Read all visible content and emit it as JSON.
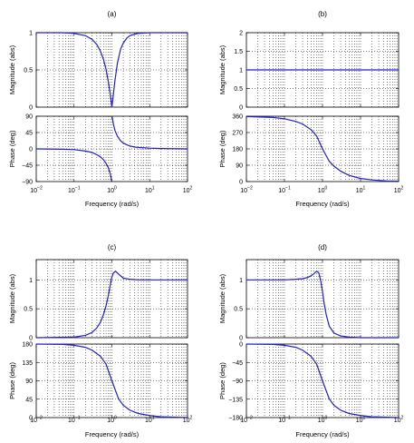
{
  "chart_data": [
    {
      "id": "a",
      "panel_label": "(a)",
      "type": "line",
      "xlabel": "Frequency  (rad/s)",
      "xscale": "log",
      "xlim": [
        0.01,
        100
      ],
      "x_ticks": [
        {
          "base": "10",
          "exp": "−2"
        },
        {
          "base": "10",
          "exp": "−1"
        },
        {
          "base": "10",
          "exp": "0"
        },
        {
          "base": "10",
          "exp": "1"
        },
        {
          "base": "10",
          "exp": "2"
        }
      ],
      "grid": true,
      "subplots": [
        {
          "ylabel": "Magnitude (abs)",
          "ylim": [
            0,
            1
          ],
          "yticks": [
            0,
            0.5,
            1
          ],
          "ytick_labels": [
            "0",
            "0.5",
            "1"
          ],
          "series": [
            {
              "x": [
                0.01,
                0.05,
                0.1,
                0.2,
                0.3,
                0.4,
                0.5,
                0.6,
                0.7,
                0.8,
                0.9,
                0.95,
                1,
                1.05,
                1.1,
                1.2,
                1.4,
                1.7,
                2,
                2.5,
                3,
                4,
                5,
                10,
                20,
                100
              ],
              "y": [
                1,
                1,
                0.99,
                0.96,
                0.91,
                0.84,
                0.75,
                0.64,
                0.51,
                0.35,
                0.18,
                0.09,
                0,
                0.09,
                0.18,
                0.35,
                0.59,
                0.78,
                0.86,
                0.93,
                0.96,
                0.98,
                0.99,
                1,
                1,
                1
              ]
            }
          ]
        },
        {
          "ylabel": "Phase (deg)",
          "ylim": [
            -90,
            90
          ],
          "yticks": [
            -90,
            -45,
            0,
            45,
            90
          ],
          "ytick_labels": [
            "−90",
            "−45",
            "0",
            "45",
            "90"
          ],
          "series": [
            {
              "x": [
                0.01,
                0.05,
                0.1,
                0.2,
                0.3,
                0.4,
                0.5,
                0.6,
                0.7,
                0.8,
                0.9,
                0.95,
                0.99
              ],
              "y": [
                0,
                -1,
                -2,
                -6,
                -10,
                -16,
                -22,
                -30,
                -40,
                -51,
                -68,
                -79,
                -89
              ]
            },
            {
              "x": [
                1.01,
                1.05,
                1.1,
                1.2,
                1.4,
                1.7,
                2,
                2.5,
                3,
                4,
                5,
                10,
                20,
                100
              ],
              "y": [
                89,
                79,
                68,
                51,
                35,
                22,
                16,
                11,
                8,
                5,
                4,
                2,
                1,
                0
              ]
            }
          ]
        }
      ]
    },
    {
      "id": "b",
      "panel_label": "(b)",
      "type": "line",
      "xlabel": "Frequency  (rad/s)",
      "xscale": "log",
      "xlim": [
        0.01,
        100
      ],
      "x_ticks": [
        {
          "base": "10",
          "exp": "−2"
        },
        {
          "base": "10",
          "exp": "−1"
        },
        {
          "base": "10",
          "exp": "0"
        },
        {
          "base": "10",
          "exp": "1"
        },
        {
          "base": "10",
          "exp": "2"
        }
      ],
      "grid": true,
      "subplots": [
        {
          "ylabel": "Magnitude (abs)",
          "ylim": [
            0,
            2
          ],
          "yticks": [
            0,
            0.5,
            1,
            1.5,
            2
          ],
          "ytick_labels": [
            "0",
            "0.5",
            "1",
            "1.5",
            "2"
          ],
          "series": [
            {
              "x": [
                0.01,
                100
              ],
              "y": [
                1,
                1
              ]
            }
          ]
        },
        {
          "ylabel": "Phase (deg)",
          "ylim": [
            0,
            360
          ],
          "yticks": [
            0,
            90,
            180,
            270,
            360
          ],
          "ytick_labels": [
            "0",
            "90",
            "180",
            "270",
            "360"
          ],
          "series": [
            {
              "x": [
                0.01,
                0.05,
                0.1,
                0.2,
                0.3,
                0.5,
                0.7,
                1,
                1.5,
                2,
                3,
                5,
                10,
                20,
                50,
                100
              ],
              "y": [
                358,
                353,
                346,
                331,
                317,
                286,
                251,
                180,
                112,
                85,
                57,
                34,
                17,
                9,
                3,
                2
              ]
            }
          ]
        }
      ]
    },
    {
      "id": "c",
      "panel_label": "(c)",
      "type": "line",
      "xlabel": "Frequency  (rad/s)",
      "xscale": "log",
      "xlim": [
        0.01,
        100
      ],
      "x_ticks": [
        {
          "base": "10",
          "exp": "−2"
        },
        {
          "base": "10",
          "exp": "−1"
        },
        {
          "base": "10",
          "exp": "0"
        },
        {
          "base": "10",
          "exp": "1"
        },
        {
          "base": "10",
          "exp": "2"
        }
      ],
      "grid": true,
      "subplots": [
        {
          "ylabel": "Magnitude (abs)",
          "ylim": [
            0,
            1.35
          ],
          "yticks": [
            0,
            0.5,
            1
          ],
          "ytick_labels": [
            "0",
            "0.5",
            "1"
          ],
          "series": [
            {
              "x": [
                0.01,
                0.1,
                0.2,
                0.3,
                0.4,
                0.5,
                0.6,
                0.7,
                0.8,
                0.9,
                1,
                1.1,
                1.25,
                1.5,
                2,
                3,
                5,
                10,
                100
              ],
              "y": [
                0,
                0.01,
                0.04,
                0.09,
                0.17,
                0.27,
                0.4,
                0.55,
                0.72,
                0.9,
                1.05,
                1.12,
                1.15,
                1.1,
                1.03,
                1.01,
                1,
                1,
                1
              ]
            }
          ]
        },
        {
          "ylabel": "Phase (deg)",
          "ylim": [
            0,
            180
          ],
          "yticks": [
            0,
            45,
            90,
            135,
            180
          ],
          "ytick_labels": [
            "0",
            "45",
            "90",
            "135",
            "180"
          ],
          "series": [
            {
              "x": [
                0.01,
                0.05,
                0.1,
                0.2,
                0.3,
                0.5,
                0.7,
                1,
                1.5,
                2,
                3,
                5,
                10,
                20,
                100
              ],
              "y": [
                180,
                179,
                177,
                172,
                165,
                150,
                131,
                90,
                46,
                30,
                18,
                10,
                5,
                2,
                0
              ]
            }
          ]
        }
      ]
    },
    {
      "id": "d",
      "panel_label": "(d)",
      "type": "line",
      "xlabel": "Frequency  (rad/s)",
      "xscale": "log",
      "xlim": [
        0.01,
        100
      ],
      "x_ticks": [
        {
          "base": "10",
          "exp": "−2"
        },
        {
          "base": "10",
          "exp": "−1"
        },
        {
          "base": "10",
          "exp": "0"
        },
        {
          "base": "10",
          "exp": "1"
        },
        {
          "base": "10",
          "exp": "2"
        }
      ],
      "grid": true,
      "subplots": [
        {
          "ylabel": "Magnitude (abs)",
          "ylim": [
            0,
            1.35
          ],
          "yticks": [
            0,
            0.5,
            1
          ],
          "ytick_labels": [
            "0",
            "0.5",
            "1"
          ],
          "series": [
            {
              "x": [
                0.01,
                0.1,
                0.2,
                0.3,
                0.4,
                0.5,
                0.6,
                0.7,
                0.8,
                0.9,
                1,
                1.1,
                1.25,
                1.5,
                2,
                3,
                5,
                10,
                100
              ],
              "y": [
                1,
                1,
                1.01,
                1.02,
                1.04,
                1.07,
                1.11,
                1.15,
                1.12,
                0.98,
                0.8,
                0.6,
                0.4,
                0.2,
                0.08,
                0.03,
                0.01,
                0,
                0
              ]
            }
          ]
        },
        {
          "ylabel": "Phase (deg)",
          "ylim": [
            -180,
            0
          ],
          "yticks": [
            -180,
            -135,
            -90,
            -45,
            0
          ],
          "ytick_labels": [
            "−180",
            "−135",
            "−90",
            "−45",
            "0"
          ],
          "series": [
            {
              "x": [
                0.01,
                0.05,
                0.1,
                0.2,
                0.3,
                0.5,
                0.7,
                1,
                1.5,
                2,
                3,
                5,
                10,
                20,
                100
              ],
              "y": [
                0,
                -1,
                -3,
                -8,
                -15,
                -30,
                -49,
                -90,
                -134,
                -150,
                -162,
                -170,
                -175,
                -178,
                -180
              ]
            }
          ]
        }
      ]
    }
  ]
}
